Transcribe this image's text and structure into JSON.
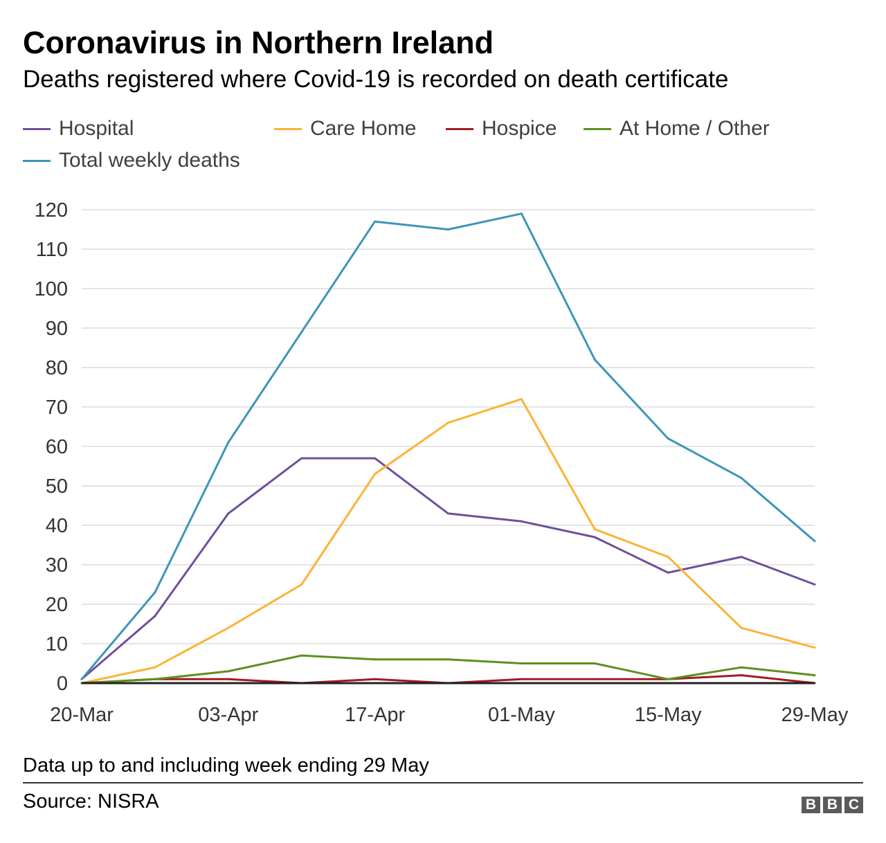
{
  "header": {
    "title": "Coronavirus in Northern Ireland",
    "subtitle": "Deaths registered where Covid-19 is recorded on death certificate"
  },
  "legend": [
    {
      "label": "Hospital",
      "color": "#6e4f9c"
    },
    {
      "label": "Care Home",
      "color": "#fbb335"
    },
    {
      "label": "Hospice",
      "color": "#a11b23"
    },
    {
      "label": "At Home / Other",
      "color": "#5c901e"
    },
    {
      "label": "Total weekly deaths",
      "color": "#3c95b9"
    }
  ],
  "chart_data": {
    "type": "line",
    "title": "Coronavirus in Northern Ireland",
    "subtitle": "Deaths registered where Covid-19 is recorded on death certificate",
    "x": [
      "20-Mar",
      "27-Mar",
      "03-Apr",
      "10-Apr",
      "17-Apr",
      "24-Apr",
      "01-May",
      "08-May",
      "15-May",
      "22-May",
      "29-May"
    ],
    "x_tick_labels": [
      "20-Mar",
      "03-Apr",
      "17-Apr",
      "01-May",
      "15-May",
      "29-May"
    ],
    "ylim": [
      0,
      120
    ],
    "y_ticks": [
      0,
      10,
      20,
      30,
      40,
      50,
      60,
      70,
      80,
      90,
      100,
      110,
      120
    ],
    "grid": true,
    "legend_position": "top",
    "series": [
      {
        "name": "Hospital",
        "color": "#6e4f9c",
        "values": [
          1,
          17,
          43,
          57,
          57,
          43,
          41,
          37,
          28,
          32,
          25
        ]
      },
      {
        "name": "Care Home",
        "color": "#fbb335",
        "values": [
          0,
          4,
          14,
          25,
          53,
          66,
          72,
          39,
          32,
          14,
          9
        ]
      },
      {
        "name": "Hospice",
        "color": "#a11b23",
        "values": [
          0,
          1,
          1,
          0,
          1,
          0,
          1,
          1,
          1,
          2,
          0
        ]
      },
      {
        "name": "At Home / Other",
        "color": "#5c901e",
        "values": [
          0,
          1,
          3,
          7,
          6,
          6,
          5,
          5,
          1,
          4,
          2
        ]
      },
      {
        "name": "Total weekly deaths",
        "color": "#3c95b9",
        "values": [
          1,
          23,
          61,
          89,
          117,
          115,
          119,
          82,
          62,
          52,
          36
        ]
      }
    ]
  },
  "footer": {
    "note": "Data up to and including week ending 29 May",
    "source": "Source: NISRA",
    "logo": "BBC"
  }
}
